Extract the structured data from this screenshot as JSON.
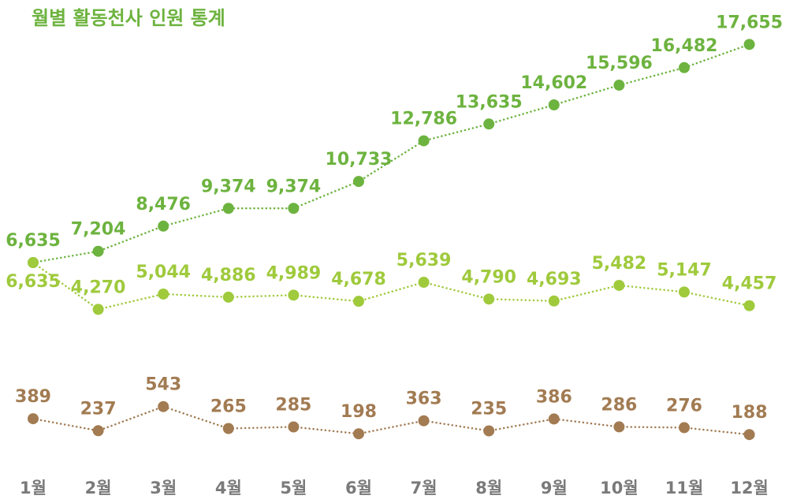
{
  "chart_data": {
    "type": "line",
    "title": "월별 활동천사 인원 통계",
    "categories": [
      "1월",
      "2월",
      "3월",
      "4월",
      "5월",
      "6월",
      "7월",
      "8월",
      "9월",
      "10월",
      "11월",
      "12월"
    ],
    "ylim": [
      -4000,
      19900
    ],
    "y2lim": [
      -300,
      5700
    ],
    "series": [
      {
        "color": "#6db33f",
        "values": [
          6635,
          7204,
          8476,
          9374,
          9374,
          10733,
          12786,
          13635,
          14602,
          15596,
          16482,
          17655
        ],
        "value_labels": [
          "6,635",
          "7,204",
          "8,476",
          "9,374",
          "9,374",
          "10,733",
          "12,786",
          "13,635",
          "14,602",
          "15,596",
          "16,482",
          "17,655"
        ]
      },
      {
        "color": "#9fca3c",
        "values": [
          6635,
          4270,
          5044,
          4886,
          4989,
          4678,
          5639,
          4790,
          4693,
          5482,
          5147,
          4457
        ],
        "value_labels": [
          "6,635",
          "4,270",
          "5,044",
          "4,886",
          "4,989",
          "4,678",
          "5,639",
          "4,790",
          "4,693",
          "5,482",
          "5,147",
          "4,457"
        ]
      },
      {
        "color": "#a27b52",
        "axis": "y2",
        "values": [
          389,
          237,
          543,
          265,
          285,
          198,
          363,
          235,
          386,
          286,
          276,
          188
        ]
      }
    ]
  }
}
